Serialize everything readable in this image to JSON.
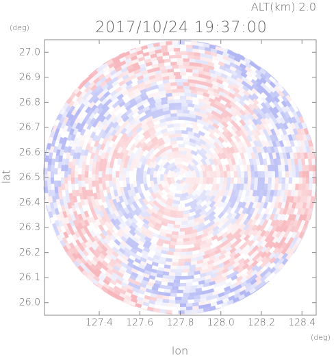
{
  "chart_data": {
    "type": "radar-image",
    "title": "2017/10/24 19:37:00",
    "subtitle": "ALT(km) 2.0",
    "x_label": "lon",
    "y_label": "lat",
    "x_unit": "(deg)",
    "y_unit": "(deg)",
    "xlim": [
      127.13,
      128.47
    ],
    "ylim": [
      25.95,
      27.05
    ],
    "xticks": [
      127.4,
      127.6,
      127.8,
      {
        "value": 128.0,
        "label": "128.0"
      },
      128.2,
      128.4
    ],
    "yticks": [
      {
        "value": 26.0,
        "label": "26.0"
      },
      26.1,
      26.2,
      26.3,
      26.4,
      26.5,
      26.6,
      26.7,
      26.8,
      26.9,
      {
        "value": 27.0,
        "label": "27.0"
      }
    ]
  }
}
